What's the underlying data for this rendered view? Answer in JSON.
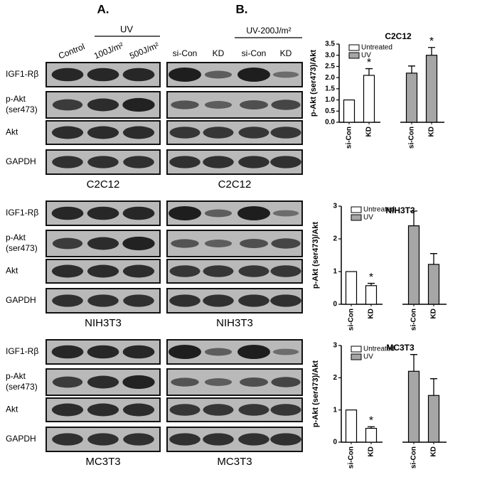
{
  "panel_a": {
    "label": "A.",
    "treatment": "UV",
    "columns": [
      "Control",
      "100J/m²",
      "500J/m²"
    ]
  },
  "panel_b": {
    "label": "B.",
    "treatment": "UV-200J/m²",
    "columns": [
      "si-Con",
      "KD",
      "si-Con",
      "KD"
    ]
  },
  "blot_rows": [
    [
      "IGF1-Rβ"
    ],
    [
      "p-Akt",
      "(ser473)"
    ],
    [
      "Akt"
    ],
    [
      "GAPDH"
    ]
  ],
  "cell_lines": [
    "C2C12",
    "NIH3T3",
    "MC3T3"
  ],
  "chart_data": [
    {
      "type": "bar",
      "title": "C2C12",
      "y_label": "p-Akt (ser473)/Akt",
      "categories": [
        "si-Con",
        "KD",
        "si-Con",
        "KD"
      ],
      "series": [
        {
          "name": "Untreated",
          "color": "#ffffff",
          "values": [
            1.0,
            2.1,
            null,
            null
          ],
          "errors": [
            null,
            0.3,
            null,
            null
          ]
        },
        {
          "name": "UV",
          "color": "#a6a6a6",
          "values": [
            null,
            null,
            2.2,
            3.0
          ],
          "errors": [
            null,
            null,
            0.32,
            0.35
          ]
        }
      ],
      "stars": [
        null,
        "*",
        null,
        "*"
      ],
      "ylim": [
        0,
        3.5
      ],
      "yticks": [
        {
          "value": 0,
          "label": "0.0"
        },
        {
          "value": 0.5,
          "label": "0.5"
        },
        {
          "value": 1,
          "label": "1.0"
        },
        {
          "value": 1.5,
          "label": "1.5"
        },
        {
          "value": 2,
          "label": "2.0"
        },
        {
          "value": 2.5,
          "label": "2.5"
        },
        {
          "value": 3,
          "label": "3.0"
        },
        {
          "value": 3.5,
          "label": "3.5"
        }
      ],
      "legend": "upper left"
    },
    {
      "type": "bar",
      "title": "NIH3T3",
      "y_label": "p-Akt (ser473)/Akt",
      "categories": [
        "si-Con",
        "KD",
        "si-Con",
        "KD"
      ],
      "series": [
        {
          "name": "Untreated",
          "color": "#ffffff",
          "values": [
            1.0,
            0.57,
            null,
            null
          ],
          "errors": [
            null,
            0.07,
            null,
            null
          ]
        },
        {
          "name": "UV",
          "color": "#a6a6a6",
          "values": [
            null,
            null,
            2.4,
            1.22
          ],
          "errors": [
            null,
            null,
            0.45,
            0.33
          ]
        }
      ],
      "stars": [
        null,
        "*",
        null,
        null
      ],
      "ylim": [
        0,
        3
      ],
      "yticks": [
        0,
        1,
        2,
        3
      ],
      "legend": "upper left"
    },
    {
      "type": "bar",
      "title": "MC3T3",
      "y_label": "p-Akt (ser473)/Akt",
      "categories": [
        "si-Con",
        "KD",
        "si-Con",
        "KD"
      ],
      "series": [
        {
          "name": "Untreated",
          "color": "#ffffff",
          "values": [
            1.0,
            0.43,
            null,
            null
          ],
          "errors": [
            null,
            0.05,
            null,
            null
          ]
        },
        {
          "name": "UV",
          "color": "#a6a6a6",
          "values": [
            null,
            null,
            2.2,
            1.45
          ],
          "errors": [
            null,
            null,
            0.52,
            0.52
          ]
        }
      ],
      "stars": [
        null,
        "*",
        null,
        null
      ],
      "ylim": [
        0,
        3
      ],
      "yticks": [
        0,
        1,
        2,
        3
      ],
      "legend": "upper left"
    }
  ]
}
